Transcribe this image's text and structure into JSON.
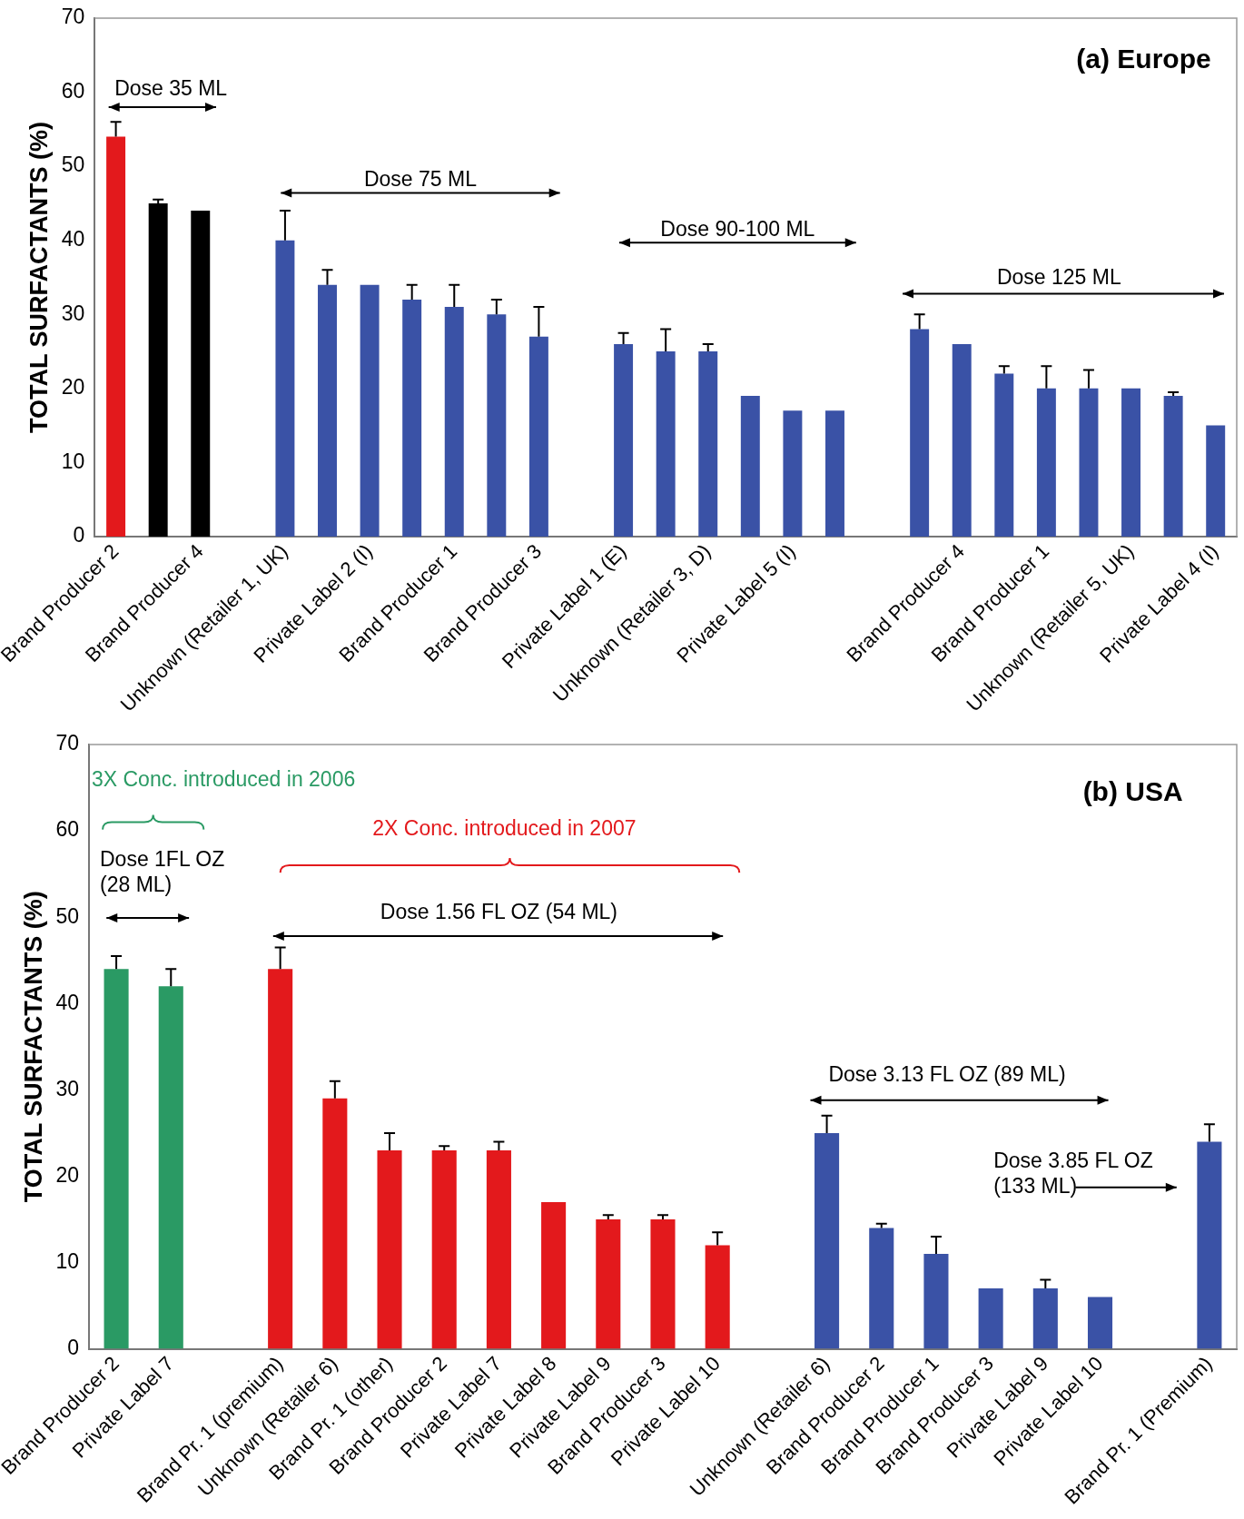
{
  "chart_data": [
    {
      "type": "bar",
      "ylabel": "TOTAL SURFACTANTS (%)",
      "categories": [
        "Brand Producer 2",
        null,
        "Brand Producer 4",
        null,
        "Unknown (Retailer 1, UK)",
        null,
        "Private Label 2 (I)",
        null,
        "Brand Producer 1",
        null,
        "Brand Producer 3",
        null,
        "Private Label 1 (E)",
        null,
        "Unknown (Retailer 3, D)",
        null,
        "Private Label 5 (I)",
        null,
        null,
        null,
        "Brand Producer 4",
        null,
        "Brand Producer 1",
        null,
        "Unknown (Retailer 5, UK)",
        null,
        "Private Label 4 (I)"
      ],
      "values": [
        54,
        45,
        44,
        null,
        40,
        34,
        34,
        32,
        31,
        30,
        27,
        null,
        26,
        25,
        25,
        19,
        17,
        17,
        null,
        28,
        26,
        22,
        20,
        20,
        20,
        19,
        15
      ],
      "colors": [
        "#e3191c",
        "#000000",
        "#000000",
        "#3a52a6",
        "#3a52a6",
        "#3a52a6",
        "#3a52a6",
        "#3a52a6",
        "#3a52a6",
        "#3a52a6",
        "#3a52a6",
        "#3a52a6",
        "#3a52a6",
        "#3a52a6",
        "#3a52a6",
        "#3a52a6",
        "#3a52a6",
        "#3a52a6",
        "#3a52a6",
        "#3a52a6",
        "#3a52a6",
        "#3a52a6",
        "#3a52a6",
        "#3a52a6",
        "#3a52a6",
        "#3a52a6",
        "#3a52a6"
      ],
      "errors": [
        [
          54,
          56
        ],
        [
          45,
          45.5
        ],
        null,
        null,
        [
          40,
          44
        ],
        [
          34,
          36
        ],
        null,
        [
          32,
          34
        ],
        [
          31,
          34
        ],
        [
          30,
          32
        ],
        [
          27,
          31
        ],
        null,
        [
          26,
          27.5
        ],
        [
          25,
          28
        ],
        [
          25,
          26
        ],
        null,
        null,
        null,
        null,
        [
          28,
          30
        ],
        null,
        [
          22,
          23
        ],
        [
          20,
          23
        ],
        [
          20,
          22.5
        ],
        null,
        [
          19,
          19.5
        ],
        null
      ],
      "ylim": [
        0,
        70
      ],
      "yticks": [
        0,
        10,
        20,
        30,
        40,
        50,
        60,
        70
      ],
      "annotations": [
        "(a) Europe",
        "Dose 35 ML",
        "Dose 75 ML",
        "Dose 90-100 ML",
        "Dose 125 ML"
      ]
    },
    {
      "type": "bar",
      "ylabel": "TOTAL SURFACTANTS (%)",
      "categories": [
        "Brand Producer 2",
        "Private Label 7",
        null,
        "Brand Pr. 1 (premium)",
        "Unknown (Retailer 6)",
        "Brand Pr. 1 (other)",
        "Brand Producer 2",
        "Private Label 7",
        "Private Label 8",
        "Private Label 9",
        "Brand Producer 3",
        "Private Label 10",
        null,
        "Unknown (Retailer 6)",
        "Brand Producer 2",
        "Brand Producer 1",
        "Brand Producer 3",
        "Private Label 9",
        "Private Label 10",
        null,
        "Brand Pr. 1 (Premium)"
      ],
      "values": [
        44,
        42,
        null,
        44,
        29,
        23,
        23,
        23,
        17,
        15,
        15,
        12,
        null,
        25,
        14,
        11,
        7,
        7,
        6,
        null,
        24
      ],
      "colors": [
        "#2a9a64",
        "#2a9a64",
        "#e3191c",
        "#e3191c",
        "#e3191c",
        "#e3191c",
        "#e3191c",
        "#e3191c",
        "#e3191c",
        "#e3191c",
        "#e3191c",
        "#e3191c",
        "#3a52a6",
        "#3a52a6",
        "#3a52a6",
        "#3a52a6",
        "#3a52a6",
        "#3a52a6",
        "#3a52a6",
        "#3a52a6",
        "#3a52a6"
      ],
      "errors": [
        [
          44,
          45.5
        ],
        [
          42,
          44
        ],
        null,
        [
          44,
          46.5
        ],
        [
          29,
          31
        ],
        [
          23,
          25
        ],
        [
          23,
          23.5
        ],
        [
          23,
          24
        ],
        null,
        [
          15,
          15.5
        ],
        [
          15,
          15.5
        ],
        [
          12,
          13.5
        ],
        null,
        [
          25,
          27
        ],
        [
          14,
          14.5
        ],
        [
          11,
          13
        ],
        null,
        [
          7,
          8
        ],
        null,
        null,
        [
          24,
          26
        ]
      ],
      "ylim": [
        0,
        70
      ],
      "yticks": [
        0,
        10,
        20,
        30,
        40,
        50,
        60,
        70
      ],
      "annotations": [
        "(b) USA",
        "3X Conc. introduced in 2006",
        "2X Conc. introduced in 2007",
        "Dose 1FL OZ\n(28 ML)",
        "Dose 1.56 FL OZ (54 ML)",
        "Dose 3.13 FL OZ (89 ML)",
        "Dose 3.85 FL OZ\n(133 ML)"
      ]
    }
  ]
}
